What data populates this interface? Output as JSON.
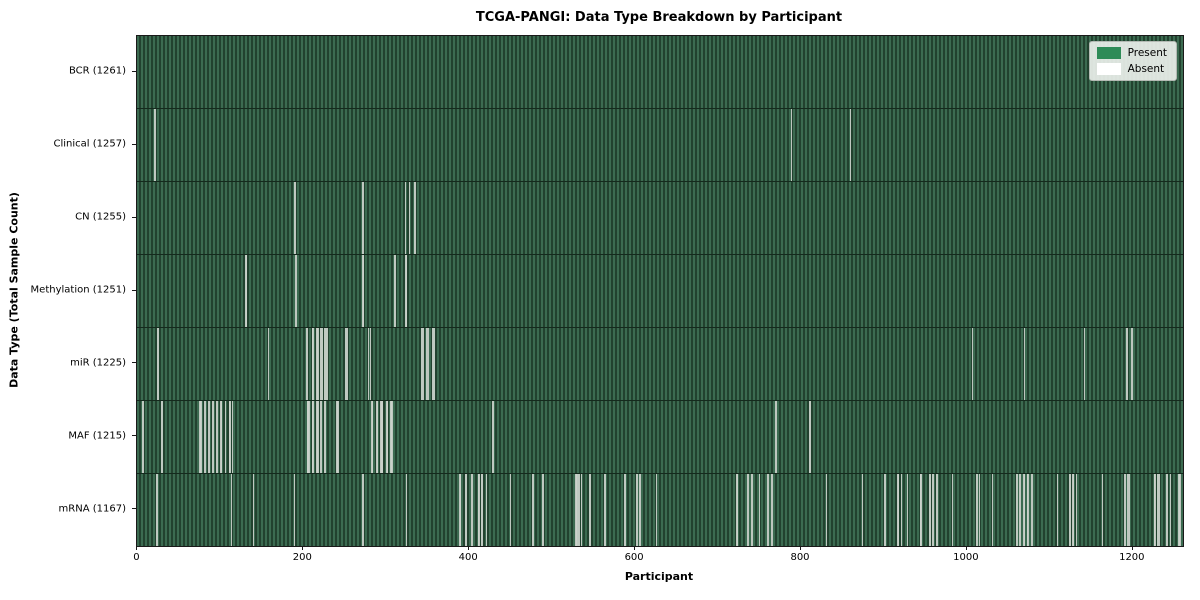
{
  "title": "TCGA-PANGI: Data Type Breakdown by Participant",
  "chart_data": {
    "type": "heatmap",
    "title": "TCGA-PANGI: Data Type Breakdown by Participant",
    "xlabel": "Participant",
    "ylabel": "Data Type (Total Sample Count)",
    "x_ticks": [
      0,
      200,
      400,
      600,
      800,
      1000,
      1200
    ],
    "x_range": [
      0,
      1261
    ],
    "total_participants": 1261,
    "grid": false,
    "legend": {
      "position": "upper right",
      "entries": [
        {
          "label": "Present",
          "color": "#2e8b57"
        },
        {
          "label": "Absent",
          "color": "#ffffff"
        }
      ]
    },
    "colors": {
      "present_fill": "#2e8b57",
      "band_stripe_light": "#3c6b51",
      "band_stripe_dark": "#22422f",
      "absent_line": "#ccd3cc",
      "row_separator": "#142a1d",
      "plot_border": "#1a1a1a",
      "legend_bg": "#ecf0ec",
      "legend_border": "#b4bab4"
    },
    "rows": [
      {
        "label": "BCR (1261)",
        "data_type": "BCR",
        "total_samples": 1261,
        "absent_count": 0,
        "absent_indices": []
      },
      {
        "label": "Clinical (1257)",
        "data_type": "Clinical",
        "total_samples": 1257,
        "absent_count": 4,
        "absent_indices": [
          20,
          21,
          788,
          859
        ]
      },
      {
        "label": "CN (1255)",
        "data_type": "CN",
        "total_samples": 1255,
        "absent_count": 6,
        "absent_indices": [
          189,
          190,
          271,
          322,
          327,
          334
        ]
      },
      {
        "label": "Methylation (1251)",
        "data_type": "Methylation",
        "total_samples": 1251,
        "absent_count": 10,
        "absent_indices": [
          130,
          131,
          190,
          191,
          271,
          272,
          309,
          310,
          323,
          324
        ]
      },
      {
        "label": "miR (1225)",
        "data_type": "miR",
        "total_samples": 1225,
        "absent_count": 36,
        "absent_indices": [
          24,
          157,
          203,
          204,
          210,
          211,
          215,
          216,
          217,
          220,
          221,
          222,
          225,
          226,
          227,
          228,
          250,
          252,
          278,
          280,
          342,
          343,
          344,
          348,
          349,
          350,
          355,
          356,
          357,
          1006,
          1069,
          1141,
          1192,
          1193,
          1198,
          1199
        ]
      },
      {
        "label": "MAF (1215)",
        "data_type": "MAF",
        "total_samples": 1215,
        "absent_count": 46,
        "absent_indices": [
          6,
          29,
          74,
          75,
          76,
          80,
          81,
          85,
          86,
          90,
          91,
          95,
          100,
          101,
          105,
          110,
          111,
          114,
          204,
          205,
          206,
          210,
          211,
          215,
          216,
          217,
          220,
          221,
          225,
          226,
          240,
          241,
          282,
          283,
          288,
          289,
          293,
          294,
          295,
          300,
          301,
          305,
          306,
          428,
          769,
          810
        ]
      },
      {
        "label": "mRNA (1167)",
        "data_type": "mRNA",
        "total_samples": 1167,
        "absent_count": 94,
        "absent_indices": [
          23,
          113,
          139,
          189,
          271,
          324,
          388,
          389,
          395,
          396,
          402,
          403,
          410,
          411,
          414,
          415,
          420,
          449,
          476,
          488,
          528,
          529,
          531,
          532,
          535,
          545,
          563,
          587,
          601,
          602,
          605,
          625,
          722,
          723,
          735,
          736,
          740,
          749,
          759,
          760,
          764,
          765,
          830,
          873,
          900,
          901,
          916,
          917,
          920,
          928,
          943,
          944,
          954,
          955,
          958,
          959,
          963,
          982,
          1011,
          1012,
          1014,
          1030,
          1059,
          1060,
          1063,
          1064,
          1068,
          1069,
          1072,
          1073,
          1077,
          1078,
          1108,
          1123,
          1124,
          1127,
          1128,
          1131,
          1163,
          1189,
          1190,
          1193,
          1194,
          1195,
          1225,
          1226,
          1229,
          1230,
          1231,
          1240,
          1241,
          1245,
          1255,
          1256
        ]
      }
    ]
  }
}
